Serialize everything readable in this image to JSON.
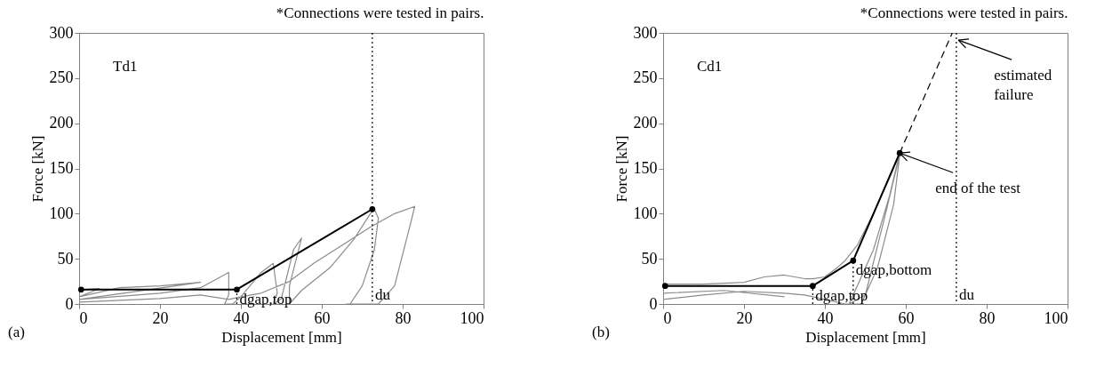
{
  "chart_data": [
    {
      "type": "line",
      "title": "*Connections were tested in pairs.",
      "xlabel": "Displacement [mm]",
      "ylabel": "Force [kN]",
      "xlim": [
        0,
        100
      ],
      "ylim": [
        0,
        300
      ],
      "xticks": [
        0,
        20,
        40,
        60,
        80,
        100
      ],
      "yticks": [
        0,
        50,
        100,
        150,
        200,
        250,
        300
      ],
      "grid": false,
      "annotations": [
        "Td1",
        "(a)"
      ],
      "ref_lines": [
        {
          "axis": "x",
          "value": 72.5,
          "label": "du",
          "line_style": "dotted",
          "color": "#000000"
        }
      ],
      "series": [
        {
          "color": "#8c8c8c",
          "marker": "none",
          "line_style": "solid",
          "x": [
            0,
            0,
            1,
            5,
            0,
            10,
            20,
            30,
            0,
            20,
            30,
            35,
            37,
            37,
            36,
            38,
            40,
            45,
            48,
            49,
            48,
            50,
            53,
            55,
            52,
            52,
            55,
            62,
            68,
            72,
            73,
            74,
            73,
            70,
            67,
            66,
            74,
            78,
            82,
            83,
            78,
            72,
            65,
            58,
            52,
            45,
            40,
            37,
            30,
            20,
            10,
            0
          ],
          "values": [
            0,
            15,
            16,
            17,
            8,
            18,
            20,
            24,
            5,
            12,
            18,
            30,
            35,
            10,
            0,
            0,
            8,
            35,
            45,
            12,
            0,
            6,
            60,
            73,
            20,
            0,
            15,
            40,
            72,
            100,
            105,
            95,
            60,
            20,
            0,
            0,
            0,
            20,
            90,
            108,
            100,
            85,
            65,
            45,
            25,
            12,
            8,
            5,
            10,
            6,
            4,
            2
          ]
        },
        {
          "color": "#000000",
          "marker": "circle",
          "line_style": "solid",
          "x": [
            0.5,
            39,
            72.5
          ],
          "values": [
            16,
            16,
            105
          ]
        },
        {
          "name": "dgap,top",
          "color": "#000000",
          "marker": "none",
          "line_style": "dotted",
          "x": [
            39,
            39
          ],
          "values": [
            0,
            16
          ]
        }
      ]
    },
    {
      "type": "line",
      "title": "*Connections were tested in pairs.",
      "xlabel": "Displacement [mm]",
      "ylabel": "Force [kN]",
      "xlim": [
        0,
        100
      ],
      "ylim": [
        0,
        300
      ],
      "xticks": [
        0,
        20,
        40,
        60,
        80,
        100
      ],
      "yticks": [
        0,
        50,
        100,
        150,
        200,
        250,
        300
      ],
      "grid": false,
      "annotations": [
        "Cd1",
        "(b)",
        {
          "text": "end of the test",
          "x": 58.5,
          "y": 167
        },
        {
          "text": "estimated\nfailure",
          "x": 73,
          "y": 292
        }
      ],
      "ref_lines": [
        {
          "axis": "x",
          "value": 72.5,
          "label": "du",
          "line_style": "dotted",
          "color": "#000000"
        }
      ],
      "series": [
        {
          "color": "#8c8c8c",
          "marker": "none",
          "line_style": "solid",
          "x": [
            0,
            0,
            10,
            20,
            25,
            30,
            35,
            37,
            40,
            43,
            45,
            48,
            52,
            56,
            58.5,
            56,
            52,
            48,
            46,
            50,
            55,
            58.5,
            57,
            53,
            49,
            45,
            40,
            35,
            30,
            20,
            10,
            0,
            0,
            15,
            30
          ],
          "values": [
            0,
            22,
            22,
            24,
            30,
            32,
            28,
            28,
            30,
            40,
            48,
            65,
            100,
            140,
            167,
            120,
            60,
            20,
            0,
            10,
            100,
            165,
            110,
            40,
            0,
            0,
            5,
            10,
            12,
            14,
            10,
            5,
            12,
            15,
            8
          ]
        },
        {
          "color": "#000000",
          "marker": "circle",
          "line_style": "solid",
          "x": [
            0.5,
            37,
            47,
            58.5
          ],
          "values": [
            20,
            20,
            48,
            167
          ]
        },
        {
          "color": "#000000",
          "marker": "none",
          "line_style": "dashed",
          "x": [
            58.5,
            71.5
          ],
          "values": [
            167,
            300
          ]
        },
        {
          "name": "dgap,top",
          "color": "#000000",
          "marker": "none",
          "line_style": "dotted",
          "x": [
            37,
            37
          ],
          "values": [
            0,
            20
          ]
        },
        {
          "name": "dgap,bottom",
          "color": "#000000",
          "marker": "none",
          "line_style": "dotted",
          "x": [
            47,
            47
          ],
          "values": [
            0,
            48
          ]
        }
      ]
    }
  ]
}
